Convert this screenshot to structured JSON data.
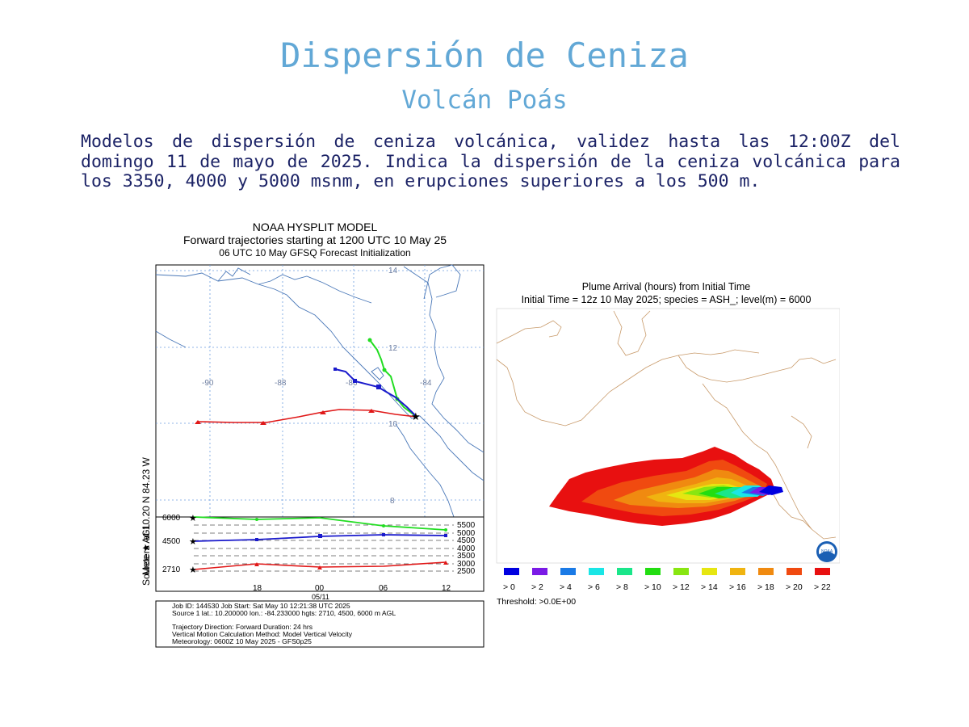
{
  "header": {
    "title": "Dispersión de Ceniza",
    "subtitle": "Volcán Poás"
  },
  "description": "Modelos de dispersión de ceniza volcánica, validez hasta las 12:00Z del domingo 11 de mayo de 2025. Indica la dispersión de la ceniza volcánica para los 3350, 4000 y 5000 msnm, en erupciones superiores a los 500 m.",
  "trajectory": {
    "title_lines": [
      "NOAA HYSPLIT MODEL",
      "Forward trajectories starting at 1200 UTC 10 May 25",
      "06 UTC 10 May    GFSQ  Forecast Initialization"
    ],
    "source_label": "Source ★  at   10.20 N   84.23 W",
    "lon_labels": [
      "-90",
      "-88",
      "-86",
      "-84"
    ],
    "lat_labels": [
      "14",
      "12",
      "10",
      "8"
    ],
    "height_axis_label": "Meters AGL",
    "height_left_labels": [
      "6000",
      "4500",
      "2710"
    ],
    "height_right_labels": [
      "5500",
      "5000",
      "4500",
      "4000",
      "3500",
      "3000",
      "2500"
    ],
    "time_labels": [
      "18",
      "00",
      "06",
      "12"
    ],
    "date_label": "05/11",
    "info_lines": [
      "Job ID: 144530                         Job Start: Sat May 10 12:21:38 UTC 2025",
      "Source 1 lat.: 10.200000  lon.: -84.233000  hgts: 2710, 4500, 6000 m AGL",
      "Trajectory Direction: Forward       Duration: 24 hrs",
      "Vertical Motion Calculation Method:       Model Vertical Velocity",
      "Meteorology: 0600Z 10 May 2025 - GFS0p25"
    ],
    "series_colors": {
      "6000": "#22dd22",
      "4500": "#1a1acc",
      "2710": "#e01818"
    }
  },
  "plume": {
    "title_lines": [
      "Plume Arrival (hours) from Initial Time",
      "Initial Time = 12z 10 May 2025;  species = ASH_;  level(m) =  6000"
    ],
    "legend": [
      {
        "label": "> 0",
        "color": "#0000e0"
      },
      {
        "label": "> 2",
        "color": "#7a1ae6"
      },
      {
        "label": "> 4",
        "color": "#1a7ae6"
      },
      {
        "label": "> 6",
        "color": "#1ae6e6"
      },
      {
        "label": "> 8",
        "color": "#1ae68a"
      },
      {
        "label": "> 10",
        "color": "#22dd11"
      },
      {
        "label": "> 12",
        "color": "#88e611"
      },
      {
        "label": "> 14",
        "color": "#e6e611"
      },
      {
        "label": "> 16",
        "color": "#f0b410"
      },
      {
        "label": "> 18",
        "color": "#f08a10"
      },
      {
        "label": "> 20",
        "color": "#f04a10"
      },
      {
        "label": "> 22",
        "color": "#e81010"
      }
    ],
    "threshold": "Threshold: >0.0E+00",
    "logo_text": "NOAA"
  }
}
